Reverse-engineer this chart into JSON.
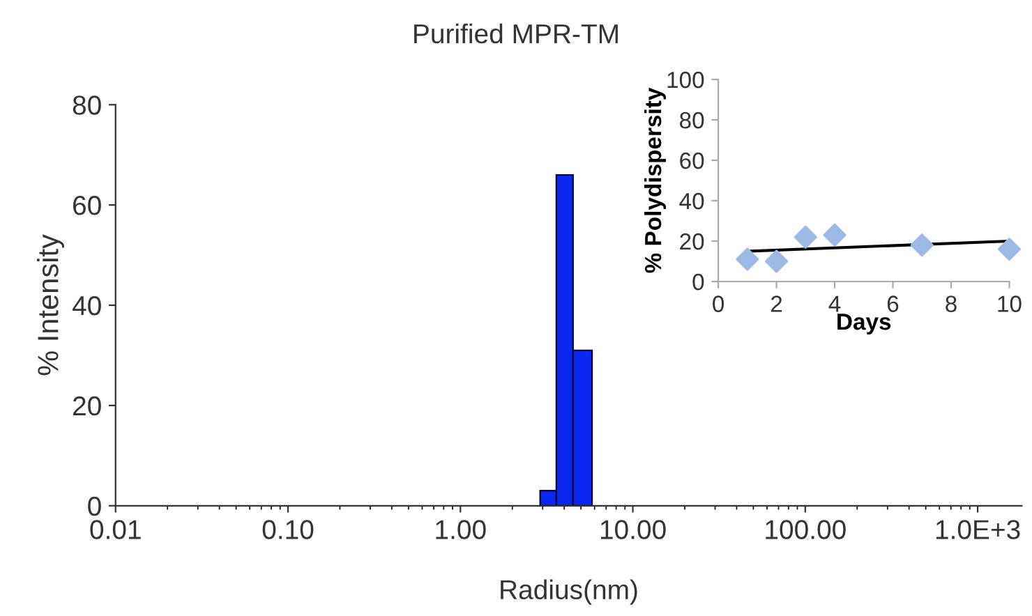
{
  "chart_data": [
    {
      "type": "histogram",
      "title": "Purified MPR-TM",
      "xlabel": "Radius(nm)",
      "ylabel": "% Intensity",
      "log": "x",
      "bins": [
        2.9,
        3.6,
        4.5,
        5.8
      ],
      "values": [
        3,
        66,
        31
      ],
      "color": "#0a28f0",
      "xlim": [
        0.01,
        1800
      ],
      "xticks": [
        {
          "value": 0.01,
          "label": "0.01"
        },
        {
          "value": 0.1,
          "label": "0.10"
        },
        {
          "value": 1,
          "label": "1.00"
        },
        {
          "value": 10,
          "label": "10.00"
        },
        {
          "value": 100,
          "label": "100.00"
        },
        {
          "value": 1000,
          "label": "1.0E+3"
        }
      ],
      "ylim": [
        0,
        80
      ],
      "yticks": [
        0,
        20,
        40,
        60,
        80
      ],
      "grid": false
    },
    {
      "type": "scatter",
      "xlabel": "Days",
      "ylabel": "% Polydispersity",
      "series": [
        {
          "type": "scatter",
          "marker": "diamond",
          "color": "#9db9e6",
          "x": [
            1,
            2,
            3,
            4,
            7,
            10
          ],
          "values": [
            11,
            10,
            22,
            23,
            18,
            16
          ]
        },
        {
          "type": "line",
          "color": "#000000",
          "x": [
            1,
            10
          ],
          "values": [
            15,
            20
          ],
          "line_style": "solid"
        }
      ],
      "xlim": [
        0,
        10
      ],
      "xticks": [
        0,
        2,
        4,
        6,
        8,
        10
      ],
      "ylim": [
        0,
        100
      ],
      "yticks": [
        0,
        20,
        40,
        60,
        80,
        100
      ],
      "grid": false
    }
  ]
}
